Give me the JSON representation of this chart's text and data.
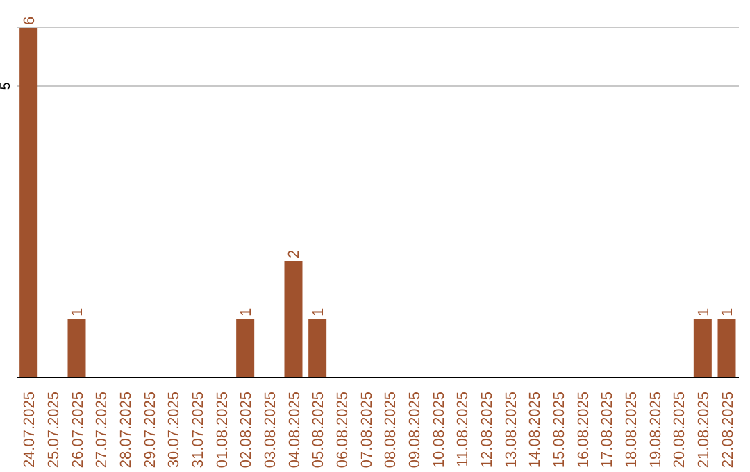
{
  "chart_data": {
    "type": "bar",
    "categories": [
      "24.07.2025",
      "25.07.2025",
      "26.07.2025",
      "27.07.2025",
      "28.07.2025",
      "29.07.2025",
      "30.07.2025",
      "31.07.2025",
      "01.08.2025",
      "02.08.2025",
      "03.08.2025",
      "04.08.2025",
      "05.08.2025",
      "06.08.2025",
      "07.08.2025",
      "08.08.2025",
      "09.08.2025",
      "10.08.2025",
      "11.08.2025",
      "12.08.2025",
      "13.08.2025",
      "14.08.2025",
      "15.08.2025",
      "16.08.2025",
      "17.08.2025",
      "18.08.2025",
      "19.08.2025",
      "20.08.2025",
      "21.08.2025",
      "22.08.2025"
    ],
    "values": [
      6,
      0,
      1,
      0,
      0,
      0,
      0,
      0,
      0,
      1,
      0,
      2,
      1,
      0,
      0,
      0,
      0,
      0,
      0,
      0,
      0,
      0,
      0,
      0,
      0,
      0,
      0,
      0,
      1,
      1
    ],
    "value_labels": [
      "6",
      null,
      "1",
      null,
      null,
      null,
      null,
      null,
      null,
      "1",
      null,
      "2",
      "1",
      null,
      null,
      null,
      null,
      null,
      null,
      null,
      null,
      null,
      null,
      null,
      null,
      null,
      null,
      null,
      "1",
      "1"
    ],
    "color": "#a0522d",
    "ylim": [
      0,
      6
    ],
    "yticks": [
      5
    ],
    "grid": "y"
  }
}
